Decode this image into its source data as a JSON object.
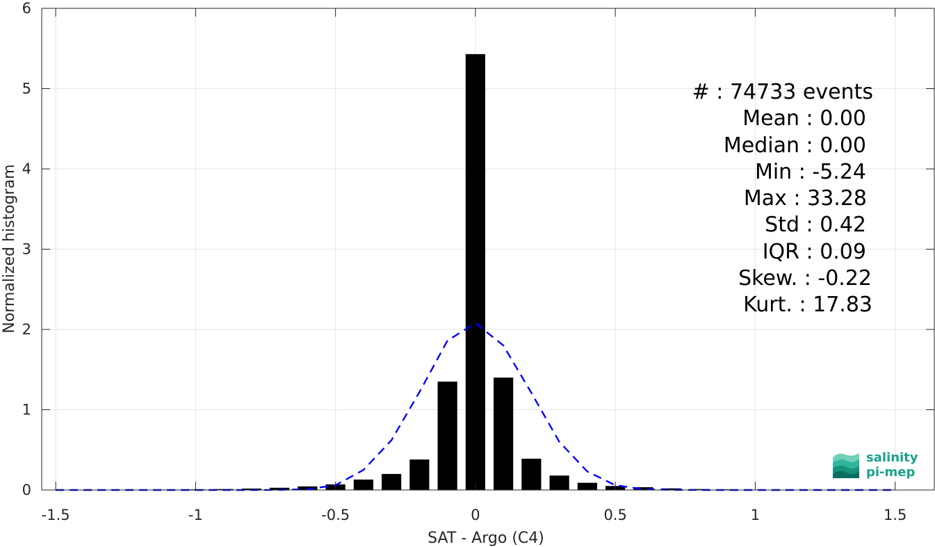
{
  "chart_data": {
    "type": "bar",
    "xlabel": "SAT - Argo (C4)",
    "ylabel": "Normalized histogram",
    "xlim": [
      -1.55,
      1.64
    ],
    "ylim": [
      0,
      6
    ],
    "xticks": [
      -1.5,
      -1,
      -0.5,
      0,
      0.5,
      1,
      1.5
    ],
    "xtick_labels": [
      "-1.5",
      "-1",
      "-0.5",
      "0",
      "0.5",
      "1",
      "1.5"
    ],
    "yticks": [
      0,
      1,
      2,
      3,
      4,
      5,
      6
    ],
    "ytick_labels": [
      "0",
      "1",
      "2",
      "3",
      "4",
      "5",
      "6"
    ],
    "grid": true,
    "bar_color": "#000000",
    "bar_width": 0.07,
    "series": [
      {
        "type": "bar",
        "x": [
          -1.4,
          -1.3,
          -1.2,
          -1.1,
          -1.0,
          -0.9,
          -0.8,
          -0.7,
          -0.6,
          -0.5,
          -0.4,
          -0.3,
          -0.2,
          -0.1,
          0.0,
          0.1,
          0.2,
          0.3,
          0.4,
          0.5,
          0.6,
          0.7,
          0.8,
          0.9,
          1.0,
          1.1,
          1.2,
          1.3,
          1.4,
          1.5
        ],
        "values": [
          0.003,
          0.003,
          0.003,
          0.005,
          0.008,
          0.012,
          0.018,
          0.028,
          0.045,
          0.07,
          0.13,
          0.2,
          0.38,
          1.35,
          5.43,
          1.4,
          0.39,
          0.18,
          0.09,
          0.05,
          0.035,
          0.02,
          0.012,
          0.008,
          0.005,
          0.004,
          0.003,
          0.003,
          0.003,
          0.003
        ]
      },
      {
        "type": "line",
        "style": "dashed",
        "color": "#0000ff",
        "x": [
          -1.5,
          -1.4,
          -1.3,
          -1.2,
          -1.1,
          -1.0,
          -0.9,
          -0.8,
          -0.7,
          -0.6,
          -0.5,
          -0.4,
          -0.3,
          -0.2,
          -0.1,
          0.0,
          0.1,
          0.2,
          0.3,
          0.4,
          0.5,
          0.6,
          0.7,
          0.8,
          0.9,
          1.0,
          1.1,
          1.2,
          1.3,
          1.4,
          1.5
        ],
        "values": [
          0,
          0,
          0,
          0,
          0,
          0,
          0,
          0,
          0.002,
          0.01,
          0.06,
          0.25,
          0.62,
          1.22,
          1.86,
          2.08,
          1.8,
          1.21,
          0.6,
          0.23,
          0.06,
          0.01,
          0.002,
          0,
          0,
          0,
          0,
          0,
          0,
          0,
          0
        ]
      }
    ],
    "annotations": [
      "#  : 74733 events",
      "Mean : 0.00",
      "Median : 0.00",
      "Min : -5.24",
      "Max : 33.28",
      "Std : 0.42",
      "IQR : 0.09",
      "Skew. : -0.22",
      "Kurt. : 17.83"
    ]
  },
  "logo": {
    "line1": "salinity",
    "line2": "pi-mep",
    "color": "#1aa08c"
  }
}
